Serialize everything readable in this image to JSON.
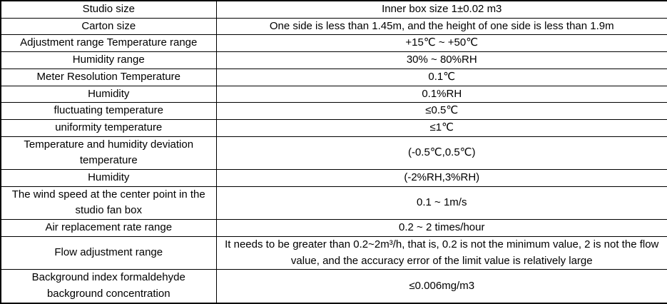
{
  "table": {
    "name": "product-specification-table",
    "columns": [
      "parameter",
      "value"
    ],
    "rows": [
      {
        "label": "Studio size",
        "value": "Inner box size 1±0.02 m3"
      },
      {
        "label": "Carton size",
        "value": "One side is less than 1.45m, and the height of one side is less than 1.9m"
      },
      {
        "label": "Adjustment range Temperature range",
        "value": "+15℃ ~ +50℃"
      },
      {
        "label": "Humidity range",
        "value": "30% ~ 80%RH"
      },
      {
        "label": "Meter Resolution Temperature",
        "value": "0.1℃"
      },
      {
        "label": "Humidity",
        "value": "0.1%RH"
      },
      {
        "label": "fluctuating temperature",
        "value": "≤0.5℃"
      },
      {
        "label": "uniformity temperature",
        "value": "≤1℃"
      },
      {
        "label": "Temperature and humidity deviation temperature",
        "value": "(-0.5℃,0.5℃)"
      },
      {
        "label": "Humidity",
        "value": "(-2%RH,3%RH)"
      },
      {
        "label": "The wind speed at the center point in the studio fan box",
        "value": "0.1 ~ 1m/s"
      },
      {
        "label": "Air replacement rate range",
        "value": "0.2 ~ 2 times/hour"
      },
      {
        "label": "Flow adjustment range",
        "value": "It needs to be greater than 0.2~2m³/h, that is, 0.2 is not the minimum value, 2 is not the flow value, and the accuracy error of the limit value is relatively large"
      },
      {
        "label": "Background index formaldehyde background concentration",
        "value": "≤0.006mg/m3"
      }
    ],
    "style": {
      "border_color": "#000000",
      "background_color": "#ffffff",
      "text_color": "#000000"
    }
  }
}
